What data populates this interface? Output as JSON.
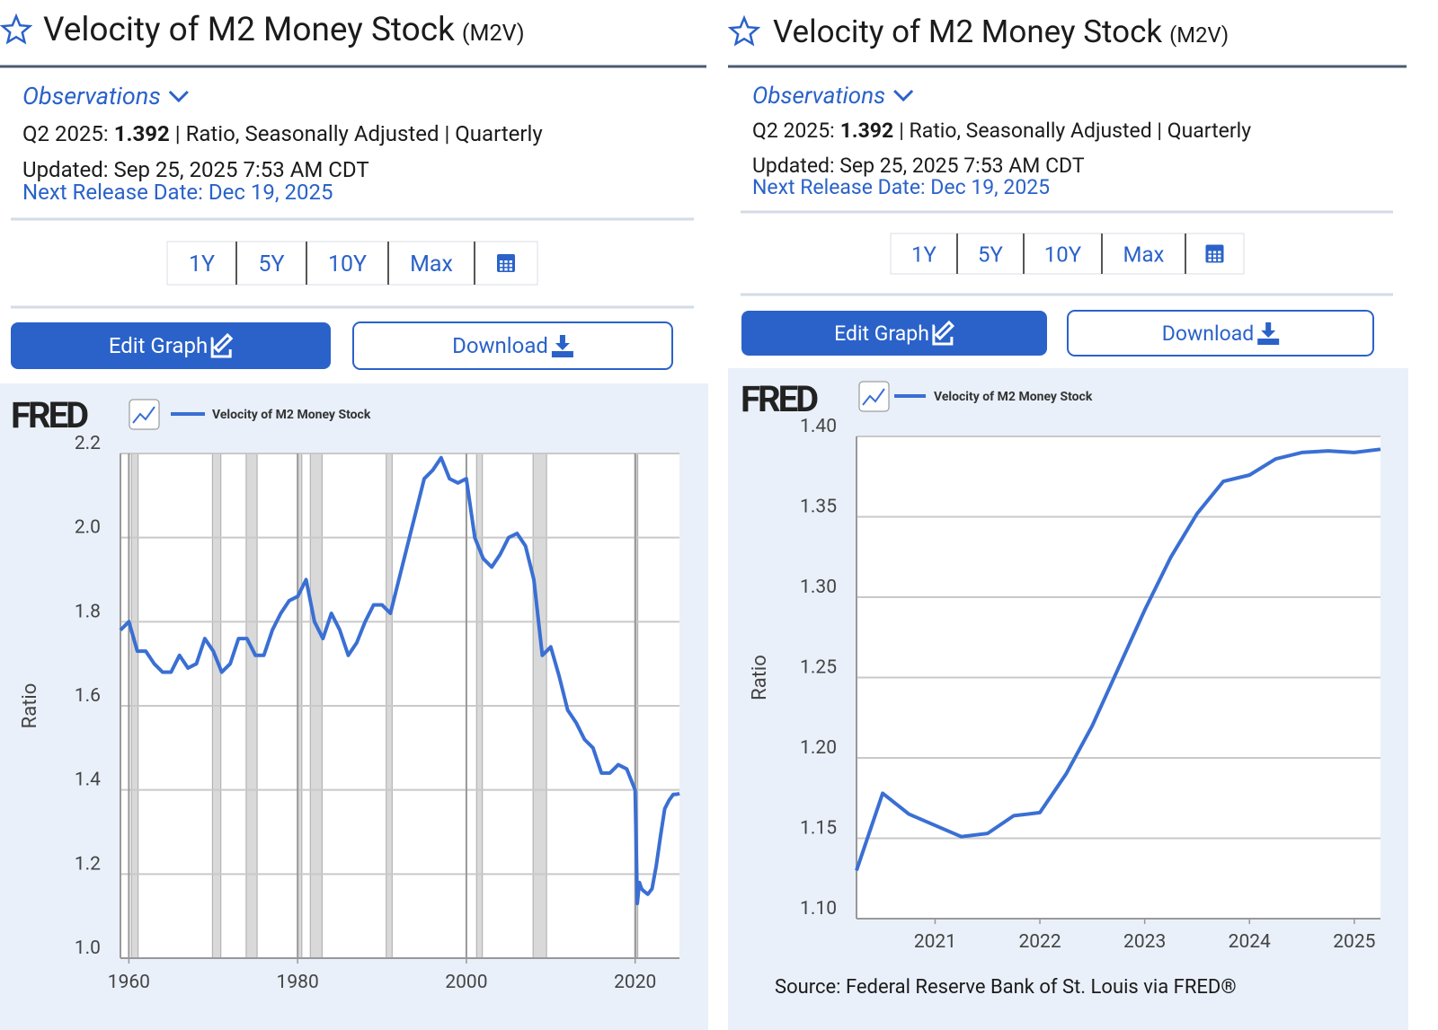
{
  "panels": [
    {
      "title": "Velocity of M2 Money Stock",
      "code": "(M2V)",
      "observations": "Observations",
      "period": "Q2 2025:",
      "value": 1.392,
      "details": "| Ratio, Seasonally Adjusted | Quarterly",
      "updated": "Updated: Sep 25, 2025 7:53 AM CDT",
      "next_release": "Next Release Date: Dec 19, 2025",
      "ranges": [
        "1Y",
        "5Y",
        "10Y",
        "Max"
      ],
      "edit": "Edit Graph",
      "download": "Download",
      "logo": "FRED"
    },
    {
      "title": "Velocity of M2 Money Stock",
      "code": "(M2V)",
      "observations": "Observations",
      "period": "Q2 2025:",
      "value": 1.392,
      "details": "| Ratio, Seasonally Adjusted | Quarterly",
      "updated": "Updated: Sep 25, 2025 7:53 AM CDT",
      "next_release": "Next Release Date: Dec 19, 2025",
      "ranges": [
        "1Y",
        "5Y",
        "10Y",
        "Max"
      ],
      "edit": "Edit Graph",
      "download": "Download",
      "logo": "FRED",
      "source": "Source: Federal Reserve Bank of St. Louis via FRED®"
    }
  ],
  "chart_data": [
    {
      "type": "line",
      "y_label": "Ratio",
      "grid": true,
      "xgrid": true,
      "x": [
        1959,
        1960,
        1961,
        1962,
        1963,
        1964,
        1965,
        1966,
        1967,
        1968,
        1969,
        1970,
        1971,
        1972,
        1973,
        1974,
        1975,
        1976,
        1977,
        1978,
        1979,
        1980,
        1981,
        1982,
        1983,
        1984,
        1985,
        1986,
        1987,
        1988,
        1989,
        1990,
        1991,
        1992,
        1993,
        1994,
        1995,
        1996,
        1997,
        1998,
        1999,
        2000,
        2001,
        2002,
        2003,
        2004,
        2005,
        2006,
        2007,
        2008,
        2009,
        2010,
        2011,
        2012,
        2013,
        2014,
        2015,
        2016,
        2017,
        2018,
        2019,
        2020,
        2020.25,
        2020.5,
        2020.75,
        2021,
        2021.5,
        2022,
        2022.5,
        2023,
        2023.5,
        2024,
        2024.5,
        2025,
        2025.25
      ],
      "series": [
        {
          "name": "Velocity of M2 Money Stock",
          "color": "#3a6fd3",
          "values": [
            1.78,
            1.8,
            1.73,
            1.73,
            1.7,
            1.68,
            1.68,
            1.72,
            1.69,
            1.7,
            1.76,
            1.73,
            1.68,
            1.7,
            1.76,
            1.76,
            1.72,
            1.72,
            1.78,
            1.82,
            1.85,
            1.86,
            1.9,
            1.8,
            1.76,
            1.82,
            1.78,
            1.72,
            1.75,
            1.8,
            1.84,
            1.84,
            1.82,
            1.9,
            1.98,
            2.06,
            2.14,
            2.16,
            2.19,
            2.14,
            2.13,
            2.14,
            2.0,
            1.95,
            1.93,
            1.96,
            2.0,
            2.01,
            1.98,
            1.9,
            1.72,
            1.74,
            1.67,
            1.59,
            1.56,
            1.52,
            1.5,
            1.44,
            1.44,
            1.46,
            1.45,
            1.4,
            1.13,
            1.18,
            1.165,
            1.16,
            1.152,
            1.165,
            1.22,
            1.29,
            1.355,
            1.375,
            1.389,
            1.39,
            1.392
          ]
        }
      ],
      "recessions": [
        [
          1960.3,
          1961.1
        ],
        [
          1969.9,
          1970.9
        ],
        [
          1973.9,
          1975.2
        ],
        [
          1980.0,
          1980.5
        ],
        [
          1981.5,
          1982.9
        ],
        [
          1990.5,
          1991.2
        ],
        [
          2001.2,
          2001.9
        ],
        [
          2007.9,
          2009.5
        ],
        [
          2020.1,
          2020.3
        ]
      ],
      "xlim": [
        1959,
        2025.25
      ],
      "ylim": [
        1.0,
        2.2
      ],
      "xticks": [
        1960,
        1980,
        2000,
        2020
      ],
      "yticks": [
        {
          "value": 1.0,
          "label": "1.0"
        },
        1.2,
        1.4,
        1.6,
        1.8,
        {
          "value": 2.0,
          "label": "2.0"
        },
        2.2
      ]
    },
    {
      "type": "line",
      "y_label": "Ratio",
      "grid": true,
      "xgrid": false,
      "x": [
        2020.25,
        2020.5,
        2020.75,
        2021,
        2021.25,
        2021.5,
        2021.75,
        2022,
        2022.25,
        2022.5,
        2022.75,
        2023,
        2023.25,
        2023.5,
        2023.75,
        2024,
        2024.25,
        2024.5,
        2024.75,
        2025,
        2025.25
      ],
      "series": [
        {
          "name": "Velocity of M2 Money Stock",
          "color": "#3a6fd3",
          "values": [
            1.13,
            1.178,
            1.165,
            1.158,
            1.151,
            1.153,
            1.164,
            1.166,
            1.19,
            1.22,
            1.256,
            1.292,
            1.325,
            1.352,
            1.372,
            1.376,
            1.386,
            1.39,
            1.391,
            1.39,
            1.392
          ]
        }
      ],
      "xlim": [
        2020.25,
        2025.25
      ],
      "ylim": [
        1.1,
        1.4
      ],
      "xticks": [
        2021,
        2022,
        2023,
        2024,
        2025
      ],
      "yticks": [
        {
          "value": 1.1,
          "label": "1.10"
        },
        1.15,
        {
          "value": 1.2,
          "label": "1.20"
        },
        1.25,
        {
          "value": 1.3,
          "label": "1.30"
        },
        1.35,
        {
          "value": 1.4,
          "label": "1.40"
        }
      ]
    }
  ]
}
